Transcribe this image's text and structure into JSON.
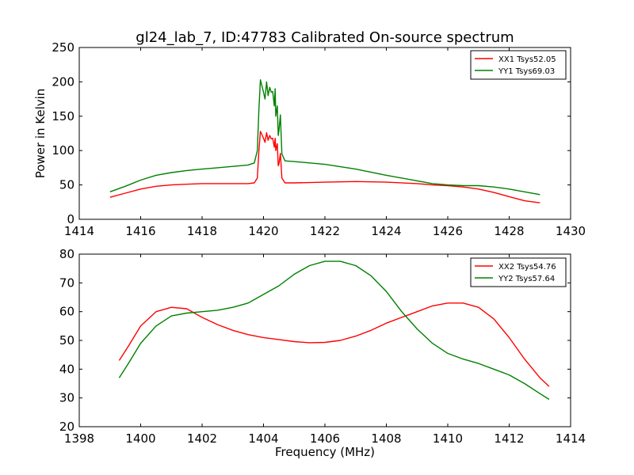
{
  "figure": {
    "title": "gl24_lab_7, ID:47783 Calibrated On-source spectrum"
  },
  "chart_data": [
    {
      "type": "line",
      "title": "gl24_lab_7, ID:47783 Calibrated On-source spectrum",
      "xlabel": "",
      "ylabel": "Power in Kelvin",
      "xlim": [
        1414,
        1430
      ],
      "ylim": [
        0,
        250
      ],
      "xticks": [
        1414,
        1416,
        1418,
        1420,
        1422,
        1424,
        1426,
        1428,
        1430
      ],
      "yticks": [
        0,
        50,
        100,
        150,
        200,
        250
      ],
      "grid": false,
      "legend": "top-right",
      "series": [
        {
          "name": "XX1 Tsys52.05",
          "color": "#ff0000",
          "x": [
            1415.0,
            1415.5,
            1416.0,
            1416.5,
            1417.0,
            1417.5,
            1418.0,
            1418.5,
            1419.0,
            1419.5,
            1419.7,
            1419.8,
            1419.85,
            1419.9,
            1420.0,
            1420.05,
            1420.1,
            1420.15,
            1420.2,
            1420.25,
            1420.3,
            1420.35,
            1420.38,
            1420.4,
            1420.45,
            1420.48,
            1420.5,
            1420.55,
            1420.6,
            1420.7,
            1421.0,
            1422.0,
            1423.0,
            1424.0,
            1425.0,
            1425.5,
            1426.0,
            1426.5,
            1427.0,
            1427.5,
            1428.0,
            1428.5,
            1429.0
          ],
          "y": [
            32,
            38,
            44,
            48,
            50,
            51,
            52,
            52,
            52,
            52,
            53,
            60,
            100,
            128,
            118,
            112,
            126,
            115,
            122,
            117,
            118,
            105,
            118,
            100,
            110,
            78,
            80,
            96,
            60,
            53,
            53,
            54,
            55,
            54,
            52,
            50,
            49,
            47,
            44,
            39,
            33,
            27,
            24
          ]
        },
        {
          "name": "YY1 Tsys69.03",
          "color": "#008000",
          "x": [
            1415.0,
            1415.5,
            1416.0,
            1416.5,
            1417.0,
            1417.5,
            1418.0,
            1418.5,
            1419.0,
            1419.5,
            1419.7,
            1419.8,
            1419.85,
            1419.9,
            1420.0,
            1420.05,
            1420.1,
            1420.15,
            1420.2,
            1420.25,
            1420.3,
            1420.35,
            1420.38,
            1420.4,
            1420.45,
            1420.48,
            1420.5,
            1420.55,
            1420.6,
            1420.7,
            1421.0,
            1422.0,
            1423.0,
            1424.0,
            1425.0,
            1425.5,
            1426.0,
            1426.5,
            1427.0,
            1427.5,
            1428.0,
            1428.5,
            1429.0
          ],
          "y": [
            40,
            48,
            57,
            64,
            68,
            71,
            73,
            75,
            77,
            79,
            82,
            100,
            160,
            203,
            185,
            175,
            200,
            180,
            192,
            185,
            186,
            165,
            190,
            150,
            165,
            122,
            128,
            152,
            95,
            85,
            84,
            80,
            73,
            64,
            56,
            52,
            50,
            49,
            49,
            47,
            44,
            40,
            36
          ]
        }
      ]
    },
    {
      "type": "line",
      "title": "",
      "xlabel": "Frequency (MHz)",
      "ylabel": "",
      "xlim": [
        1398,
        1414
      ],
      "ylim": [
        20,
        80
      ],
      "xticks": [
        1398,
        1400,
        1402,
        1404,
        1406,
        1408,
        1410,
        1412,
        1414
      ],
      "yticks": [
        20,
        30,
        40,
        50,
        60,
        70,
        80
      ],
      "grid": false,
      "legend": "top-right",
      "series": [
        {
          "name": "XX2 Tsys54.76",
          "color": "#ff0000",
          "x": [
            1399.3,
            1399.6,
            1400.0,
            1400.5,
            1401.0,
            1401.5,
            1402.0,
            1402.5,
            1403.0,
            1403.5,
            1404.0,
            1404.5,
            1405.0,
            1405.5,
            1406.0,
            1406.5,
            1407.0,
            1407.5,
            1408.0,
            1408.5,
            1409.0,
            1409.5,
            1410.0,
            1410.5,
            1411.0,
            1411.5,
            1412.0,
            1412.5,
            1413.0,
            1413.3
          ],
          "y": [
            43,
            48,
            55,
            60,
            61.5,
            61,
            58,
            55.5,
            53.5,
            52,
            51,
            50.3,
            49.6,
            49.2,
            49.3,
            50,
            51.5,
            53.5,
            56,
            58,
            60,
            62,
            63,
            63,
            61.5,
            57.5,
            51,
            43.5,
            37,
            34
          ]
        },
        {
          "name": "YY2 Tsys57.64",
          "color": "#008000",
          "x": [
            1399.3,
            1399.6,
            1400.0,
            1400.5,
            1401.0,
            1401.5,
            1402.0,
            1402.5,
            1403.0,
            1403.5,
            1404.0,
            1404.5,
            1405.0,
            1405.5,
            1406.0,
            1406.5,
            1407.0,
            1407.5,
            1408.0,
            1408.5,
            1409.0,
            1409.5,
            1410.0,
            1410.5,
            1411.0,
            1411.5,
            1412.0,
            1412.5,
            1413.0,
            1413.3
          ],
          "y": [
            37,
            42,
            49,
            55,
            58.5,
            59.5,
            60,
            60.5,
            61.5,
            63,
            66,
            69,
            73,
            76,
            77.5,
            77.5,
            76,
            72.5,
            67,
            60,
            54,
            49,
            45.5,
            43.5,
            42,
            40,
            38,
            35,
            31.5,
            29.5
          ]
        }
      ]
    }
  ]
}
